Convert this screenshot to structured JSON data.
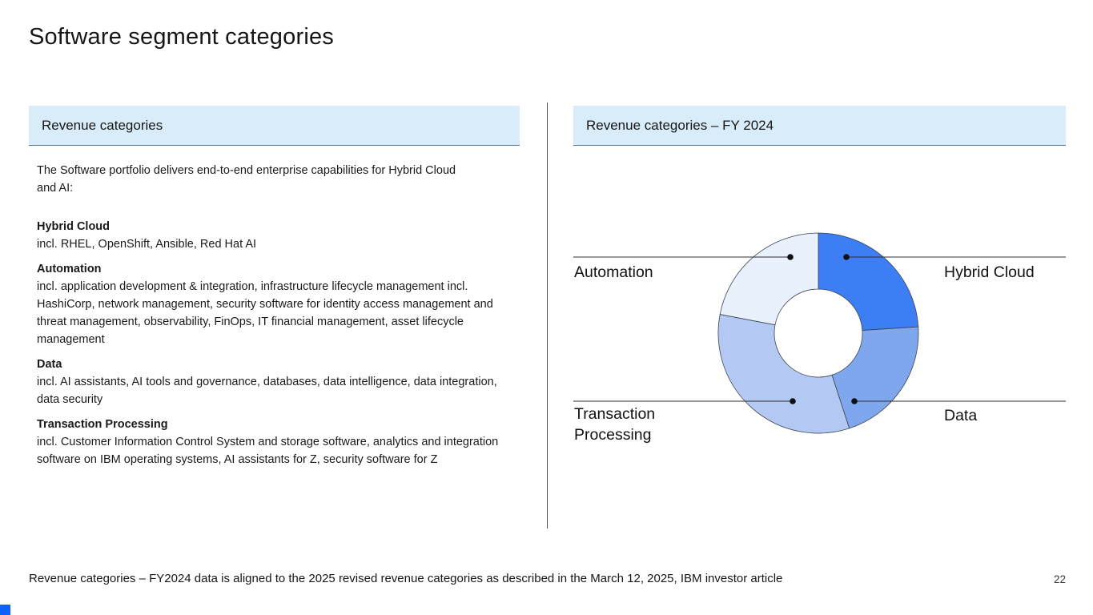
{
  "slide": {
    "title": "Software segment categories",
    "page_number": "22",
    "footnote": "Revenue categories – FY2024 data is aligned to the 2025 revised revenue categories as described in the March 12, 2025, IBM investor article"
  },
  "left_panel": {
    "header": "Revenue categories",
    "intro": "The Software portfolio delivers end-to-end enterprise capabilities for Hybrid Cloud and AI:",
    "categories": [
      {
        "name": "Hybrid Cloud",
        "description": "incl. RHEL, OpenShift, Ansible, Red Hat AI"
      },
      {
        "name": "Automation",
        "description": "incl. application development & integration, infrastructure lifecycle management incl. HashiCorp, network management, security software for identity access management and threat management, observability, FinOps, IT financial management, asset lifecycle management"
      },
      {
        "name": "Data",
        "description": "incl. AI assistants, AI tools and governance, databases, data intelligence, data integration, data security"
      },
      {
        "name": "Transaction Processing",
        "description": "incl. Customer Information Control System and storage software, analytics and integration software on IBM operating systems, AI assistants for Z, security software for Z"
      }
    ]
  },
  "right_panel": {
    "header": "Revenue categories – FY 2024",
    "labels": {
      "top_left": "Automation",
      "top_right": "Hybrid Cloud",
      "bottom_left": "Transaction Processing",
      "bottom_right": "Data"
    }
  },
  "chart_data": {
    "type": "pie",
    "subtype": "donut",
    "title": "Revenue categories – FY 2024",
    "direction": "clockwise",
    "start_angle_deg": 0,
    "legend": "leader-line labels",
    "segments": [
      {
        "label": "Hybrid Cloud",
        "value_pct": 24,
        "color": "#3d7ef5"
      },
      {
        "label": "Data",
        "value_pct": 21,
        "color": "#7fa7ee"
      },
      {
        "label": "Transaction Processing",
        "value_pct": 33,
        "color": "#b3c9f4"
      },
      {
        "label": "Automation",
        "value_pct": 22,
        "color": "#e9f1fc"
      }
    ]
  },
  "colors": {
    "panel_header_bg": "#d8edf9",
    "panel_header_underline": "#54779e",
    "accent_blue": "#0f62fe",
    "text": "#161616"
  }
}
